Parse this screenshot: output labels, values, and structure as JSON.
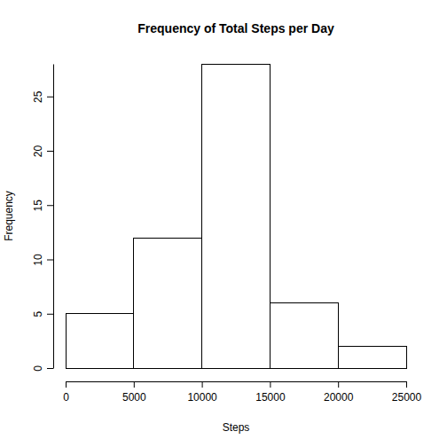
{
  "chart_data": {
    "type": "histogram",
    "title": "Frequency of Total Steps per Day",
    "x_label": "Steps",
    "y_label": "Frequency",
    "bins": [
      0,
      5000,
      10000,
      15000,
      20000,
      25000
    ],
    "values": [
      5,
      12,
      28,
      6,
      2
    ],
    "color": "#ffffff",
    "xlim": [
      0,
      25000
    ],
    "xticks": [
      0,
      5000,
      10000,
      15000,
      20000,
      25000
    ],
    "ylim": [
      0,
      28
    ],
    "yticks": [
      0,
      5,
      10,
      15,
      20,
      25
    ]
  }
}
